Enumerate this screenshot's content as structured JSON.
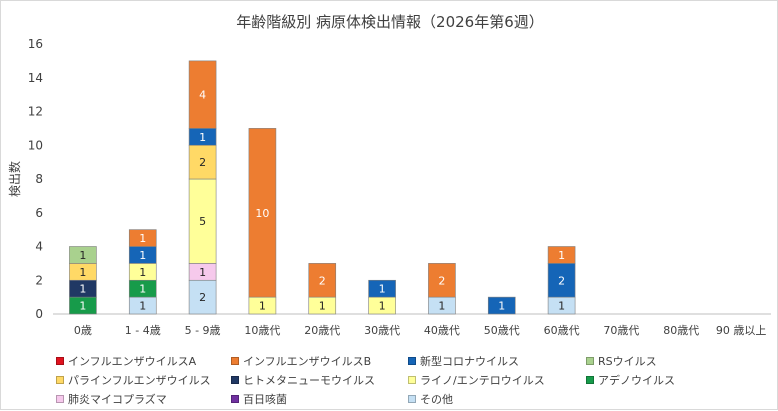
{
  "chart_data": {
    "type": "bar",
    "stacked": true,
    "title": "年齢階級別 病原体検出情報（2026年第6週）",
    "ylabel": "検出数",
    "xlabel": "",
    "ylim": [
      0,
      16
    ],
    "yticks": [
      0,
      2,
      4,
      6,
      8,
      10,
      12,
      14,
      16
    ],
    "grid": false,
    "legend": "bottom",
    "categories": [
      "0歳",
      "1 - 4歳",
      "5 - 9歳",
      "10歳代",
      "20歳代",
      "30歳代",
      "40歳代",
      "50歳代",
      "60歳代",
      "70歳代",
      "80歳代",
      "90 歳以上"
    ],
    "series": [
      {
        "name": "その他",
        "color": "#c5e0f4",
        "values": [
          0,
          1,
          2,
          0,
          0,
          0,
          1,
          0,
          1,
          0,
          0,
          0
        ]
      },
      {
        "name": "アデノウイルス",
        "color": "#179b4a",
        "values": [
          1,
          1,
          0,
          0,
          0,
          0,
          0,
          0,
          0,
          0,
          0,
          0
        ]
      },
      {
        "name": "ヒトメタニューモウイルス",
        "color": "#203864",
        "values": [
          1,
          0,
          0,
          0,
          0,
          0,
          0,
          0,
          0,
          0,
          0,
          0
        ]
      },
      {
        "name": "肺炎マイコプラズマ",
        "color": "#f6c9ec",
        "values": [
          0,
          0,
          1,
          0,
          0,
          0,
          0,
          0,
          0,
          0,
          0,
          0
        ]
      },
      {
        "name": "ライノ/エンテロウイルス",
        "color": "#ffff99",
        "values": [
          0,
          1,
          5,
          1,
          1,
          1,
          0,
          0,
          0,
          0,
          0,
          0
        ]
      },
      {
        "name": "パラインフルエンザウイルス",
        "color": "#ffd966",
        "values": [
          1,
          0,
          2,
          0,
          0,
          0,
          0,
          0,
          0,
          0,
          0,
          0
        ]
      },
      {
        "name": "新型コロナウイルス",
        "color": "#1565b7",
        "values": [
          0,
          1,
          1,
          0,
          0,
          1,
          0,
          1,
          2,
          0,
          0,
          0
        ]
      },
      {
        "name": "インフルエンザウイルスB",
        "color": "#ed7d31",
        "values": [
          0,
          1,
          4,
          10,
          2,
          0,
          2,
          0,
          1,
          0,
          0,
          0
        ]
      },
      {
        "name": "RSウイルス",
        "color": "#a9d18e",
        "values": [
          1,
          0,
          0,
          0,
          0,
          0,
          0,
          0,
          0,
          0,
          0,
          0
        ]
      },
      {
        "name": "インフルエンザウイルスA",
        "color": "#e0121e",
        "values": [
          0,
          0,
          0,
          0,
          0,
          0,
          0,
          0,
          0,
          0,
          0,
          0
        ]
      },
      {
        "name": "百日咳菌",
        "color": "#7030a0",
        "values": [
          0,
          0,
          0,
          0,
          0,
          0,
          0,
          0,
          0,
          0,
          0,
          0
        ]
      }
    ],
    "legend_order": [
      "インフルエンザウイルスA",
      "インフルエンザウイルスB",
      "新型コロナウイルス",
      "RSウイルス",
      "パラインフルエンザウイルス",
      "ヒトメタニューモウイルス",
      "ライノ/エンテロウイルス",
      "アデノウイルス",
      "肺炎マイコプラズマ",
      "百日咳菌",
      "その他"
    ],
    "dark_label_series": [
      "その他",
      "ライノ/エンテロウイルス",
      "パラインフルエンザウイルス",
      "RSウイルス",
      "肺炎マイコプラズマ"
    ]
  }
}
